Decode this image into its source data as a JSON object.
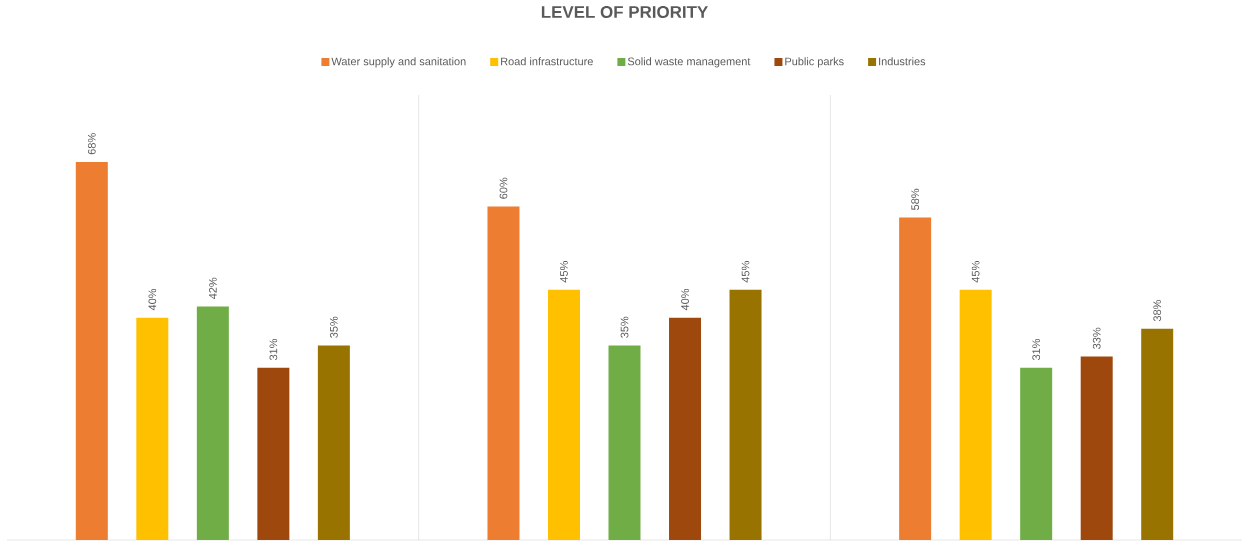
{
  "chart_data": {
    "type": "bar",
    "title": "LEVEL OF PRIORITY",
    "categories": [
      null,
      null,
      null
    ],
    "legend": "top",
    "grid": "x",
    "series": [
      {
        "name": "Water supply and sanitation",
        "color": "#ed7d31",
        "values": [
          68,
          60,
          58
        ],
        "value_labels": [
          "68%",
          "60%",
          "58%"
        ]
      },
      {
        "name": "Road infrastructure",
        "color": "#ffc000",
        "values": [
          40,
          45,
          45
        ],
        "value_labels": [
          "40%",
          "45%",
          "45%"
        ]
      },
      {
        "name": "Solid waste management",
        "color": "#70ad47",
        "values": [
          42,
          35,
          31
        ],
        "value_labels": [
          "42%",
          "35%",
          "31%"
        ]
      },
      {
        "name": "Public parks",
        "color": "#9e480e",
        "values": [
          31,
          40,
          33
        ],
        "value_labels": [
          "31%",
          "40%",
          "33%"
        ]
      },
      {
        "name": "Industries",
        "color": "#997300",
        "values": [
          35,
          45,
          38
        ],
        "value_labels": [
          "35%",
          "45%",
          "38%"
        ]
      }
    ]
  }
}
